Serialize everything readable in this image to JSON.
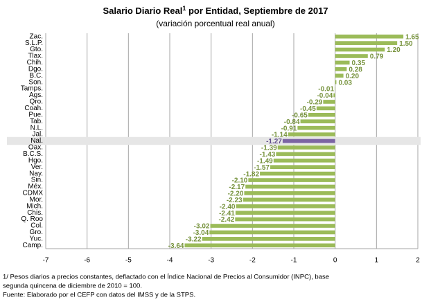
{
  "chart_data": {
    "type": "hbar",
    "title": [
      "Salario Diario Real",
      "1",
      " por Entidad, Septiembre de 2017"
    ],
    "subtitle": "(variación porcentual real anual)",
    "categories": [
      "Zac.",
      "S.L.P.",
      "Gto.",
      "Tlax.",
      "Chih.",
      "Dgo.",
      "B.C.",
      "Son.",
      "Tamps.",
      "Ags.",
      "Qro.",
      "Coah.",
      "Pue.",
      "Tab.",
      "N.L.",
      "Jal.",
      "Nal.",
      "Oax.",
      "B.C.S.",
      "Hgo.",
      "Ver.",
      "Nay.",
      "Sin.",
      "Méx.",
      "CDMX",
      "Mor.",
      "Mich.",
      "Chis.",
      "Q. Roo",
      "Col.",
      "Gro.",
      "Yuc.",
      "Camp."
    ],
    "values": [
      1.65,
      1.5,
      1.2,
      0.79,
      0.35,
      0.28,
      0.2,
      0.03,
      -0.01,
      -0.04,
      -0.29,
      -0.45,
      -0.65,
      -0.84,
      -0.91,
      -1.14,
      -1.27,
      -1.39,
      -1.43,
      -1.49,
      -1.57,
      -1.82,
      -2.1,
      -2.17,
      -2.2,
      -2.23,
      -2.4,
      -2.41,
      -2.42,
      -3.02,
      -3.04,
      -3.22,
      -3.64
    ],
    "value_labels": [
      "1.65",
      "1.50",
      "1.20",
      "0.79",
      "0.35",
      "0.28",
      "0.20",
      "0.03",
      "-0.01",
      "-0.04",
      "-0.29",
      "-0.45",
      "-0.65",
      "-0.84",
      "-0.91",
      "-1.14",
      "-1.27",
      "-1.39",
      "-1.43",
      "-1.49",
      "-1.57",
      "-1.82",
      "-2.10",
      "-2.17",
      "-2.20",
      "-2.23",
      "-2.40",
      "-2.41",
      "-2.42",
      "-3.02",
      "-3.04",
      "-3.22",
      "-3.64"
    ],
    "colors": [
      "#9bbb59",
      "#9bbb59",
      "#9bbb59",
      "#9bbb59",
      "#9bbb59",
      "#9bbb59",
      "#9bbb59",
      "#9bbb59",
      "#9bbb59",
      "#9bbb59",
      "#9bbb59",
      "#9bbb59",
      "#9bbb59",
      "#9bbb59",
      "#9bbb59",
      "#9bbb59",
      "#7b64a3",
      "#9bbb59",
      "#9bbb59",
      "#9bbb59",
      "#9bbb59",
      "#9bbb59",
      "#9bbb59",
      "#9bbb59",
      "#9bbb59",
      "#9bbb59",
      "#9bbb59",
      "#9bbb59",
      "#9bbb59",
      "#9bbb59",
      "#9bbb59",
      "#9bbb59",
      "#9bbb59"
    ],
    "xlim": [
      -7,
      2
    ],
    "xticks": [
      -7,
      -6,
      -5,
      -4,
      -3,
      -2,
      -1,
      0,
      1,
      2
    ],
    "grid": true,
    "notes": [
      "1/ Pesos diarios a precios constantes, deflactado con el Índice Nacional de Precios al Consumidor (INPC), base",
      "segunda quincena de diciembre de 2010 = 100.",
      "Fuente: Elaborado por el CEFP con datos  del IMSS y de la STPS."
    ]
  }
}
